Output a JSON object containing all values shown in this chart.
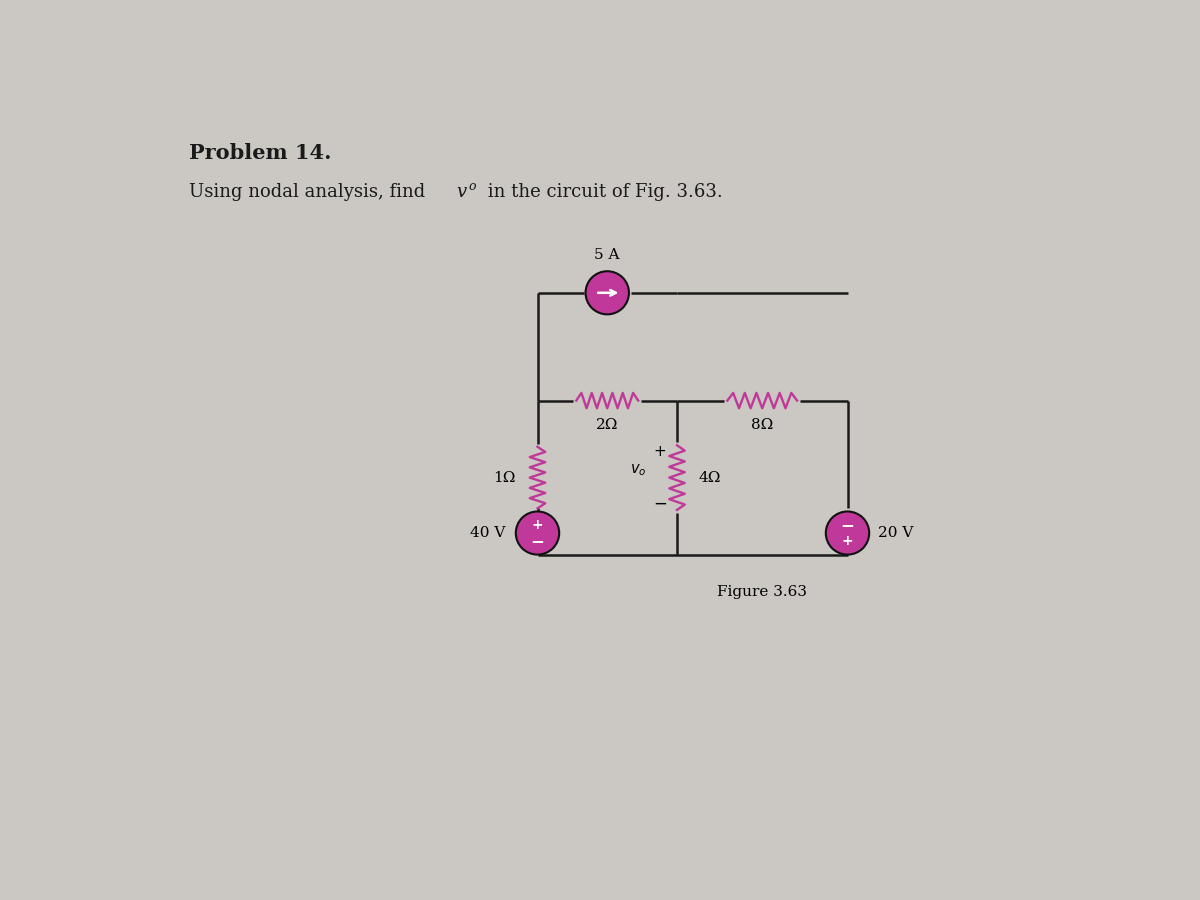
{
  "bg_color": "#cbc7c2",
  "title": "Problem 14.",
  "subtitle_plain": "Using nodal analysis, find ",
  "subtitle_vo": "v",
  "subtitle_sub": "o",
  "subtitle_end": " in the circuit of Fig. 3.63.",
  "figure_label": "Figure 3.63",
  "title_fontsize": 15,
  "subtitle_fontsize": 13,
  "fig_label_fontsize": 11,
  "resistor_color": "#c0399a",
  "source_color": "#c0399a",
  "wire_color": "#1a1a1a",
  "text_color": "#1a1a1a",
  "xl": 5.0,
  "xm": 6.8,
  "xr": 9.0,
  "yt": 6.6,
  "ymid": 5.2,
  "yb": 3.2,
  "source_r": 0.28
}
